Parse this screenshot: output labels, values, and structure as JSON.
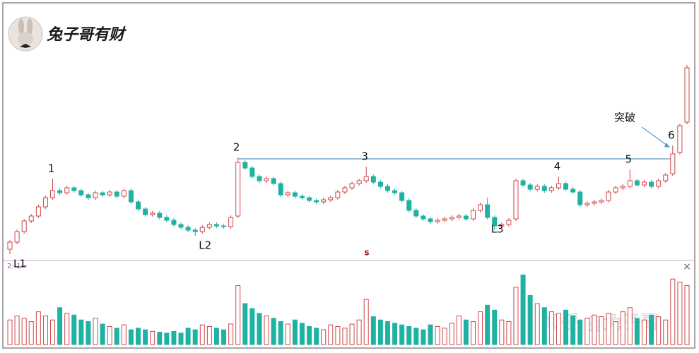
{
  "logo": "兔子哥有财",
  "watermark": "知乎 @兔子哥",
  "indicator_label": "2:-1→",
  "close_button": "×",
  "chart_data": {
    "type": "candlestick",
    "up_color": "#d0474a",
    "down_color": "#1fb2a3",
    "resistance_color": "#5a9bc4",
    "ylim": [
      0,
      360
    ],
    "volume_ylim": [
      0,
      100
    ],
    "resistance_level": 143,
    "annotations": [
      "L1",
      "1",
      "L2",
      "2",
      "3",
      "L3",
      "4",
      "5",
      "突破",
      "6"
    ],
    "marker": "s",
    "open": [
      15,
      25,
      40,
      55,
      62,
      75,
      88,
      98,
      95,
      102,
      98,
      92,
      88,
      95,
      92,
      96,
      90,
      98,
      82,
      72,
      64,
      66,
      60,
      56,
      50,
      46,
      42,
      40,
      46,
      50,
      48,
      47,
      62,
      138,
      130,
      118,
      112,
      115,
      108,
      92,
      95,
      90,
      88,
      84,
      82,
      85,
      88,
      96,
      102,
      108,
      112,
      118,
      110,
      104,
      98,
      95,
      84,
      70,
      62,
      58,
      54,
      56,
      58,
      60,
      62,
      58,
      70,
      78,
      60,
      48,
      50,
      58,
      112,
      106,
      100,
      104,
      98,
      102,
      108,
      100,
      96,
      78,
      80,
      82,
      84,
      96,
      102,
      104,
      112,
      106,
      110,
      104,
      112,
      122,
      152,
      195
    ],
    "high": [
      28,
      43,
      58,
      65,
      78,
      91,
      115,
      101,
      105,
      105,
      101,
      95,
      98,
      98,
      99,
      99,
      101,
      101,
      85,
      75,
      69,
      69,
      63,
      59,
      53,
      49,
      45,
      49,
      53,
      53,
      51,
      63,
      145,
      141,
      133,
      121,
      118,
      118,
      111,
      98,
      98,
      93,
      91,
      87,
      88,
      91,
      99,
      105,
      111,
      115,
      132,
      121,
      113,
      107,
      101,
      98,
      87,
      73,
      65,
      61,
      59,
      61,
      63,
      65,
      65,
      73,
      81,
      88,
      63,
      53,
      59,
      115,
      115,
      109,
      107,
      107,
      105,
      118,
      111,
      103,
      99,
      83,
      85,
      87,
      99,
      105,
      107,
      128,
      115,
      113,
      113,
      115,
      123,
      162,
      193,
      276
    ],
    "low": [
      8,
      22,
      37,
      52,
      59,
      72,
      85,
      92,
      92,
      95,
      89,
      85,
      85,
      89,
      89,
      87,
      87,
      79,
      69,
      61,
      61,
      57,
      53,
      47,
      43,
      39,
      34,
      37,
      43,
      45,
      44,
      44,
      59,
      127,
      115,
      109,
      109,
      105,
      89,
      89,
      87,
      85,
      81,
      79,
      79,
      82,
      85,
      93,
      99,
      105,
      109,
      107,
      101,
      95,
      92,
      81,
      67,
      59,
      55,
      51,
      51,
      53,
      55,
      57,
      55,
      55,
      67,
      57,
      42,
      45,
      47,
      55,
      103,
      97,
      97,
      95,
      95,
      99,
      97,
      93,
      75,
      75,
      77,
      79,
      81,
      93,
      99,
      101,
      103,
      103,
      101,
      101,
      109,
      119,
      149,
      192
    ],
    "close": [
      25,
      40,
      55,
      62,
      75,
      88,
      98,
      95,
      102,
      98,
      92,
      88,
      95,
      92,
      96,
      90,
      98,
      82,
      72,
      64,
      66,
      60,
      56,
      50,
      46,
      42,
      40,
      46,
      50,
      48,
      47,
      60,
      138,
      130,
      118,
      112,
      115,
      108,
      92,
      95,
      90,
      88,
      84,
      82,
      85,
      88,
      96,
      102,
      108,
      112,
      118,
      110,
      104,
      98,
      95,
      84,
      70,
      62,
      58,
      54,
      56,
      58,
      60,
      62,
      58,
      70,
      78,
      60,
      48,
      50,
      56,
      112,
      106,
      100,
      104,
      98,
      102,
      108,
      100,
      96,
      78,
      80,
      82,
      84,
      96,
      102,
      104,
      112,
      106,
      110,
      104,
      112,
      120,
      150,
      190,
      272
    ],
    "volume": [
      30,
      35,
      32,
      28,
      40,
      35,
      30,
      45,
      38,
      36,
      30,
      28,
      32,
      25,
      22,
      20,
      24,
      18,
      20,
      18,
      16,
      15,
      14,
      16,
      14,
      20,
      18,
      24,
      22,
      20,
      18,
      25,
      72,
      50,
      44,
      38,
      35,
      32,
      28,
      25,
      30,
      26,
      22,
      20,
      18,
      24,
      22,
      20,
      25,
      30,
      55,
      34,
      30,
      28,
      26,
      24,
      22,
      20,
      18,
      24,
      22,
      20,
      26,
      35,
      30,
      28,
      40,
      48,
      42,
      30,
      28,
      70,
      85,
      60,
      50,
      45,
      40,
      38,
      42,
      35,
      30,
      32,
      36,
      34,
      38,
      28,
      40,
      45,
      32,
      30,
      36,
      34,
      30,
      80,
      76,
      72
    ]
  }
}
